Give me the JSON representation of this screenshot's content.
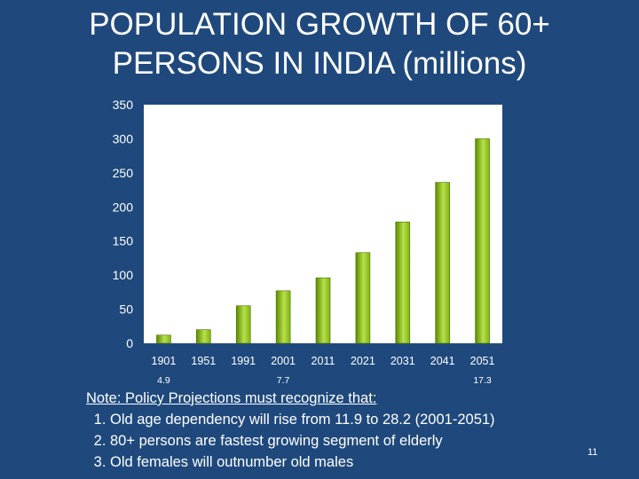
{
  "slide": {
    "title_line1": "POPULATION GROWTH OF 60+",
    "title_line2": "PERSONS IN INDIA (millions)",
    "page_number": "11"
  },
  "notes": {
    "heading": "Note: Policy Projections must recognize that:",
    "items": [
      "Old age dependency will rise from 11.9 to 28.2 (2001-2051)",
      "80+ persons are fastest growing segment of elderly",
      "Old females will outnumber old males"
    ]
  },
  "colors": {
    "background": "#1f497d",
    "bar_dark": "#5a8a00",
    "bar_light": "#b7e04a",
    "plot_area": "#ffffff",
    "text": "#ffffff"
  },
  "chart_data": {
    "type": "bar",
    "title": "POPULATION GROWTH OF 60+ PERSONS IN INDIA (millions)",
    "xlabel": "",
    "ylabel": "",
    "categories": [
      "1901",
      "1951",
      "1991",
      "2001",
      "2011",
      "2021",
      "2031",
      "2041",
      "2051"
    ],
    "values": [
      12,
      20,
      55,
      77,
      96,
      133,
      178,
      236,
      300
    ],
    "ylim": [
      0,
      350
    ],
    "yticks": [
      "0",
      "50",
      "100",
      "150",
      "200",
      "250",
      "300",
      "350"
    ],
    "grid": false,
    "annotations": [
      {
        "category": "1901",
        "text": "4.9"
      },
      {
        "category": "2001",
        "text": "7.7"
      },
      {
        "category": "2051",
        "text": "17.3"
      }
    ]
  }
}
